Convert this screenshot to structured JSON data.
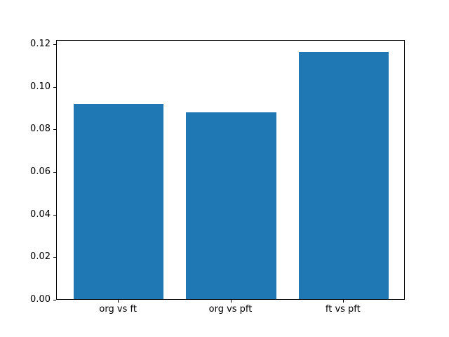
{
  "chart_data": {
    "type": "bar",
    "title": "",
    "xlabel": "",
    "ylabel": "",
    "categories": [
      "org vs ft",
      "org vs pft",
      "ft vs pft"
    ],
    "values": [
      0.0916,
      0.0877,
      0.1162
    ],
    "ylim": [
      0,
      0.122
    ],
    "ytick_labels": [
      "0.00",
      "0.02",
      "0.04",
      "0.06",
      "0.08",
      "0.10",
      "0.12"
    ],
    "ytick_values": [
      0.0,
      0.02,
      0.04,
      0.06,
      0.08,
      0.1,
      0.12
    ],
    "bar_color": "#1f77b4",
    "axis_color": "#000000",
    "background_color": "#ffffff",
    "grid": false,
    "legend": null,
    "bar_width_fraction": 0.8,
    "x_margin_fraction": 0.55
  }
}
